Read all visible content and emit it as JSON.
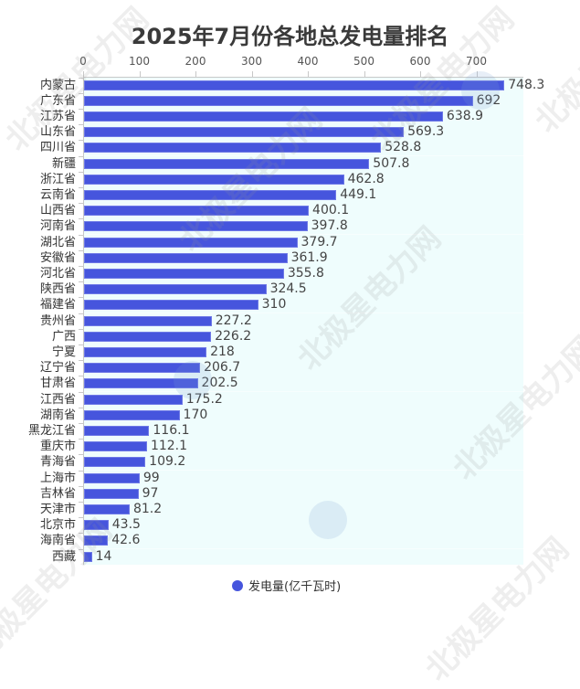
{
  "chart_data": {
    "type": "bar",
    "orientation": "horizontal",
    "title": "2025年7月份各地总发电量排名",
    "xlabel": "",
    "ylabel": "",
    "xlim": [
      0,
      784
    ],
    "x_ticks": [
      0,
      100,
      200,
      300,
      400,
      500,
      600,
      700
    ],
    "x_axis_position": "top",
    "grid": false,
    "legend": {
      "position": "bottom",
      "entries": [
        "发电量(亿千瓦时)"
      ]
    },
    "bar_color": "#4655dd",
    "categories": [
      "内蒙古",
      "广东省",
      "江苏省",
      "山东省",
      "四川省",
      "新疆",
      "浙江省",
      "云南省",
      "山西省",
      "河南省",
      "湖北省",
      "安徽省",
      "河北省",
      "陕西省",
      "福建省",
      "贵州省",
      "广西",
      "宁夏",
      "辽宁省",
      "甘肃省",
      "江西省",
      "湖南省",
      "黑龙江省",
      "重庆市",
      "青海省",
      "上海市",
      "吉林省",
      "天津市",
      "北京市",
      "海南省",
      "西藏"
    ],
    "series": [
      {
        "name": "发电量(亿千瓦时)",
        "values": [
          748.3,
          692,
          638.9,
          569.3,
          528.8,
          507.8,
          462.8,
          449.1,
          400.1,
          397.8,
          379.7,
          361.9,
          355.8,
          324.5,
          310,
          227.2,
          226.2,
          218,
          206.7,
          202.5,
          175.2,
          170,
          116.1,
          112.1,
          109.2,
          99,
          97,
          81.2,
          43.5,
          42.6,
          14
        ]
      }
    ],
    "value_labels": [
      "748.3",
      "692",
      "638.9",
      "569.3",
      "528.8",
      "507.8",
      "462.8",
      "449.1",
      "400.1",
      "397.8",
      "379.7",
      "361.9",
      "355.8",
      "324.5",
      "310",
      "227.2",
      "226.2",
      "218",
      "206.7",
      "202.5",
      "175.2",
      "170",
      "116.1",
      "112.1",
      "109.2",
      "99",
      "97",
      "81.2",
      "43.5",
      "42.6",
      "14"
    ]
  },
  "title": "2025年7月份各地总发电量排名",
  "legend_label": "发电量(亿千瓦时)",
  "watermark_text": "北极星电力网"
}
